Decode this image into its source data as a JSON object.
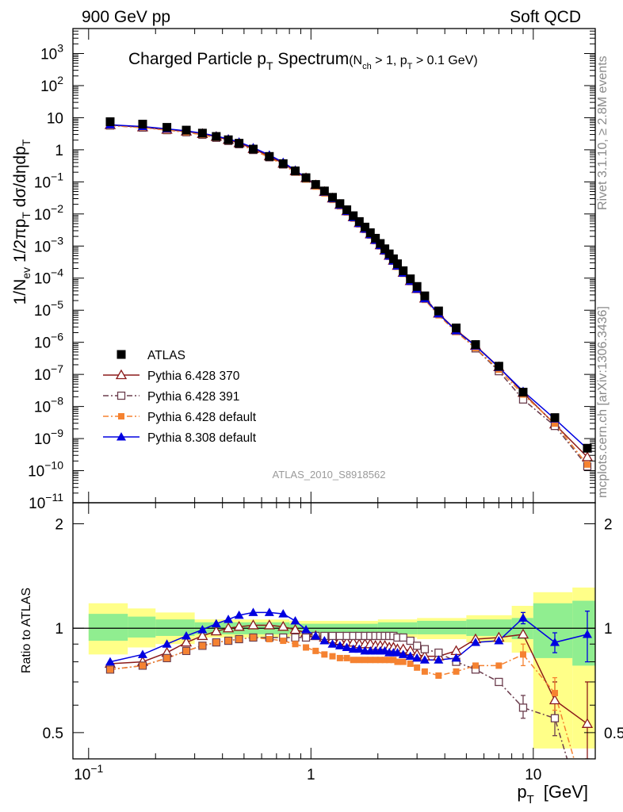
{
  "header": {
    "left": "900 GeV pp",
    "right": "Soft QCD"
  },
  "side_labels": {
    "rivet": "Rivet 3.1.10, ≥ 2.8M events",
    "mcplots": "mcplots.cern.ch [arXiv:1306.3436]"
  },
  "colors": {
    "atlas": "#000000",
    "p6_370": "#8b1a1a",
    "p6_391": "#6b3d4d",
    "p6_default": "#f58231",
    "p8_default": "#0000e0",
    "band_inner": "#90ee90",
    "band_outer": "#ffff88"
  },
  "chart_data": [
    {
      "type": "scatter",
      "title": "Charged Particle p",
      "title_sub": "T",
      "title_tail": " Spectrum",
      "title_cond": "(N",
      "title_cond_sub1": "ch",
      "title_cond_mid": " > 1, p",
      "title_cond_sub2": "T",
      "title_cond_end": " > 0.1 GeV)",
      "ylabel": "1/N_ev 1/2πp_T dσ/dηdp_T",
      "ylabel_parts": {
        "a": "1/N",
        "a_sub": "ev",
        "b": " 1/2πp",
        "b_sub": "T",
        "c": " dσ/dηdp",
        "c_sub": "T"
      },
      "watermark": "ATLAS_2010_S8918562",
      "xscale": "log",
      "yscale": "log",
      "xlim": [
        0.085,
        19
      ],
      "ylim": [
        1e-11,
        6000
      ],
      "ytick_labels": [
        {
          "mant": "10",
          "exp": "3",
          "v": 1000
        },
        {
          "mant": "10",
          "exp": "2",
          "v": 100
        },
        {
          "mant": "10",
          "exp": "",
          "v": 10
        },
        {
          "mant": "1",
          "exp": "",
          "v": 1
        },
        {
          "mant": "10",
          "exp": "−1",
          "v": 0.1
        },
        {
          "mant": "10",
          "exp": "−2",
          "v": 0.01
        },
        {
          "mant": "10",
          "exp": "−3",
          "v": 0.001
        },
        {
          "mant": "10",
          "exp": "−4",
          "v": 0.0001
        },
        {
          "mant": "10",
          "exp": "−5",
          "v": 1e-05
        },
        {
          "mant": "10",
          "exp": "−6",
          "v": 1e-06
        },
        {
          "mant": "10",
          "exp": "−7",
          "v": 1e-07
        },
        {
          "mant": "10",
          "exp": "−8",
          "v": 1e-08
        },
        {
          "mant": "10",
          "exp": "−9",
          "v": 1e-09
        },
        {
          "mant": "10",
          "exp": "−10",
          "v": 1e-10
        },
        {
          "mant": "10",
          "exp": "−11",
          "v": 1e-11
        }
      ],
      "legend": {
        "position": "lower-left",
        "entries": [
          {
            "label": "ATLAS",
            "series": "atlas"
          },
          {
            "label": "Pythia 6.428 370",
            "series": "p6_370"
          },
          {
            "label": "Pythia 6.428 391",
            "series": "p6_391"
          },
          {
            "label": "Pythia 6.428 default",
            "series": "p6_default"
          },
          {
            "label": "Pythia 8.308 default",
            "series": "p8_default"
          }
        ]
      },
      "x": [
        0.125,
        0.175,
        0.225,
        0.275,
        0.325,
        0.375,
        0.425,
        0.475,
        0.55,
        0.65,
        0.75,
        0.85,
        0.95,
        1.05,
        1.15,
        1.25,
        1.35,
        1.45,
        1.55,
        1.65,
        1.75,
        1.85,
        1.95,
        2.05,
        2.15,
        2.25,
        2.35,
        2.45,
        2.6,
        2.8,
        3.0,
        3.25,
        3.75,
        4.5,
        5.5,
        7.0,
        9.0,
        12.5,
        17.5
      ],
      "atlas": [
        7.5,
        6.3,
        5.0,
        4.1,
        3.3,
        2.6,
        2.05,
        1.6,
        1.05,
        0.62,
        0.37,
        0.22,
        0.135,
        0.083,
        0.052,
        0.033,
        0.021,
        0.0135,
        0.0088,
        0.0058,
        0.0039,
        0.0026,
        0.00175,
        0.0012,
        0.00082,
        0.00057,
        0.0004,
        0.00028,
        0.00017,
        9.5e-05,
        5.5e-05,
        2.8e-05,
        9.5e-06,
        2.8e-06,
        8.5e-07,
        1.8e-07,
        2.8e-08,
        4.5e-09,
        5e-10
      ],
      "series": [
        {
          "key": "p6_370",
          "style": "solid",
          "marker": "triangle-open",
          "ratio": [
            0.79,
            0.8,
            0.85,
            0.91,
            0.95,
            0.98,
            1.0,
            1.01,
            1.02,
            1.02,
            1.01,
            0.99,
            0.97,
            0.95,
            0.94,
            0.93,
            0.92,
            0.91,
            0.91,
            0.9,
            0.9,
            0.9,
            0.89,
            0.89,
            0.89,
            0.88,
            0.88,
            0.87,
            0.87,
            0.86,
            0.84,
            0.83,
            0.83,
            0.86,
            0.93,
            0.94,
            0.96,
            0.62,
            0.53
          ]
        },
        {
          "key": "p6_391",
          "style": "dashdot",
          "marker": "square-open",
          "ratio": [
            0.76,
            0.78,
            0.82,
            0.86,
            0.89,
            0.91,
            0.92,
            0.93,
            0.94,
            0.94,
            0.94,
            0.94,
            0.94,
            0.95,
            0.95,
            0.95,
            0.95,
            0.95,
            0.95,
            0.95,
            0.95,
            0.95,
            0.95,
            0.95,
            0.95,
            0.95,
            0.95,
            0.94,
            0.94,
            0.92,
            0.89,
            0.87,
            0.85,
            0.8,
            0.76,
            0.7,
            0.59,
            0.55,
            0.27
          ]
        },
        {
          "key": "p6_default",
          "style": "dashdot",
          "marker": "square-filled",
          "ratio": [
            0.76,
            0.78,
            0.82,
            0.86,
            0.89,
            0.91,
            0.92,
            0.93,
            0.94,
            0.93,
            0.92,
            0.9,
            0.88,
            0.86,
            0.84,
            0.83,
            0.82,
            0.82,
            0.81,
            0.81,
            0.81,
            0.81,
            0.81,
            0.81,
            0.81,
            0.81,
            0.81,
            0.8,
            0.8,
            0.79,
            0.77,
            0.75,
            0.73,
            0.75,
            0.78,
            0.78,
            0.84,
            0.65,
            0.31
          ]
        },
        {
          "key": "p8_default",
          "style": "solid",
          "marker": "triangle-filled",
          "ratio": [
            0.8,
            0.84,
            0.9,
            0.95,
            0.99,
            1.03,
            1.06,
            1.09,
            1.11,
            1.11,
            1.1,
            1.05,
            0.99,
            0.95,
            0.92,
            0.9,
            0.89,
            0.88,
            0.87,
            0.87,
            0.86,
            0.86,
            0.86,
            0.86,
            0.86,
            0.85,
            0.85,
            0.85,
            0.84,
            0.83,
            0.82,
            0.81,
            0.81,
            0.82,
            0.91,
            0.92,
            1.07,
            0.91,
            0.96
          ]
        }
      ]
    },
    {
      "type": "scatter",
      "ylabel": "Ratio to ATLAS",
      "xlabel": "p_T  [GeV]",
      "xlabel_parts": {
        "a": "p",
        "a_sub": "T",
        "b": "[GeV]"
      },
      "xscale": "log",
      "yscale": "log",
      "xlim": [
        0.085,
        19
      ],
      "ylim": [
        0.42,
        2.3
      ],
      "ytick_labels": [
        {
          "label": "2",
          "v": 2
        },
        {
          "label": "1",
          "v": 1
        },
        {
          "label": "0.5",
          "v": 0.5
        }
      ],
      "xtick_labels": [
        {
          "mant": "10",
          "exp": "−1",
          "v": 0.1
        },
        {
          "mant": "1",
          "exp": "",
          "v": 1
        },
        {
          "mant": "10",
          "exp": "",
          "v": 10
        }
      ],
      "reference_line": 1,
      "bands": [
        {
          "x0": 0.1,
          "x1": 0.15,
          "inner": [
            0.92,
            1.1
          ],
          "outer": [
            0.84,
            1.18
          ]
        },
        {
          "x0": 0.15,
          "x1": 0.2,
          "inner": [
            0.94,
            1.08
          ],
          "outer": [
            0.88,
            1.14
          ]
        },
        {
          "x0": 0.2,
          "x1": 0.3,
          "inner": [
            0.95,
            1.06
          ],
          "outer": [
            0.9,
            1.11
          ]
        },
        {
          "x0": 0.3,
          "x1": 0.8,
          "inner": [
            0.96,
            1.04
          ],
          "outer": [
            0.94,
            1.06
          ]
        },
        {
          "x0": 0.8,
          "x1": 2.0,
          "inner": [
            0.97,
            1.03
          ],
          "outer": [
            0.95,
            1.05
          ]
        },
        {
          "x0": 2.0,
          "x1": 3.0,
          "inner": [
            0.96,
            1.04
          ],
          "outer": [
            0.94,
            1.06
          ]
        },
        {
          "x0": 3.0,
          "x1": 5.0,
          "inner": [
            0.96,
            1.05
          ],
          "outer": [
            0.93,
            1.07
          ]
        },
        {
          "x0": 5.0,
          "x1": 8.0,
          "inner": [
            0.95,
            1.06
          ],
          "outer": [
            0.91,
            1.09
          ]
        },
        {
          "x0": 8.0,
          "x1": 10.0,
          "inner": [
            0.93,
            1.07
          ],
          "outer": [
            0.85,
            1.16
          ]
        },
        {
          "x0": 10.0,
          "x1": 15.0,
          "inner": [
            0.82,
            1.18
          ],
          "outer": [
            0.45,
            1.27
          ]
        },
        {
          "x0": 15.0,
          "x1": 19.0,
          "inner": [
            0.78,
            1.2
          ],
          "outer": [
            0.45,
            1.31
          ]
        }
      ],
      "errors": {
        "p8_default": {
          "x": [
            9.0,
            12.5,
            17.5
          ],
          "lo": [
            1.03,
            0.85,
            0.8
          ],
          "hi": [
            1.11,
            0.97,
            1.12
          ]
        },
        "p6_370": {
          "x": [
            12.5,
            17.5
          ],
          "lo": [
            0.55,
            0.42
          ],
          "hi": [
            0.7,
            0.7
          ]
        },
        "p6_391": {
          "x": [
            9.0,
            12.5
          ],
          "lo": [
            0.55,
            0.49
          ],
          "hi": [
            0.64,
            0.61
          ]
        },
        "p6_default": {
          "x": [
            9.0,
            12.5
          ],
          "lo": [
            0.78,
            0.58
          ],
          "hi": [
            0.9,
            0.72
          ]
        }
      }
    }
  ]
}
